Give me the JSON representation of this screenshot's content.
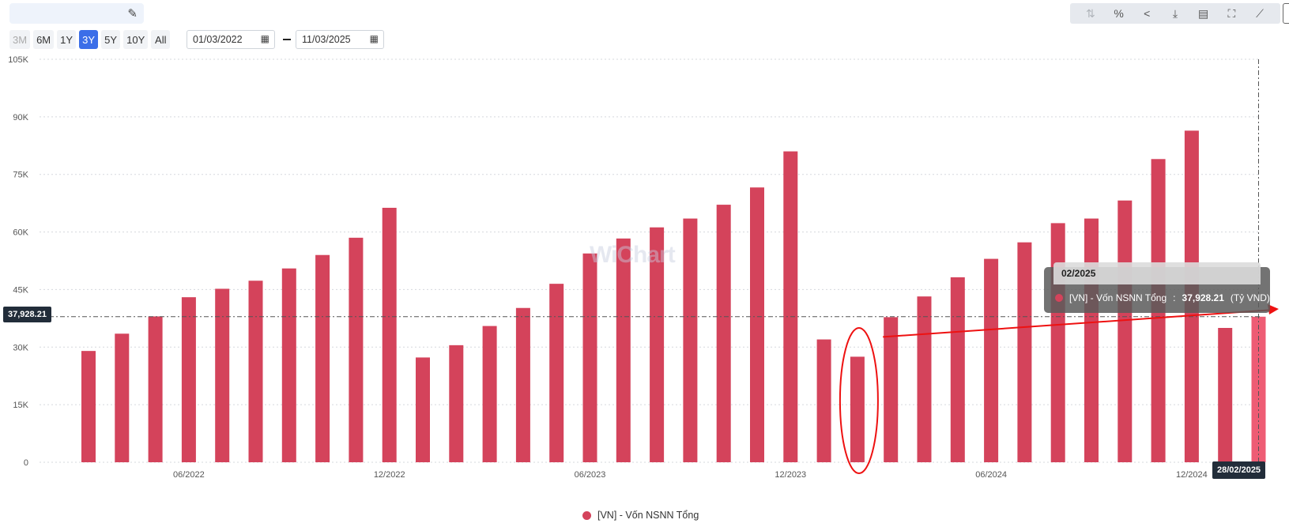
{
  "header": {
    "title": "",
    "edit_icon": "pencil-icon"
  },
  "range_buttons": [
    {
      "label": "3M",
      "state": "disabled"
    },
    {
      "label": "6M",
      "state": "normal"
    },
    {
      "label": "1Y",
      "state": "normal"
    },
    {
      "label": "3Y",
      "state": "active"
    },
    {
      "label": "5Y",
      "state": "normal"
    },
    {
      "label": "10Y",
      "state": "normal"
    },
    {
      "label": "All",
      "state": "normal"
    }
  ],
  "date_range": {
    "start": "01/03/2022",
    "end": "11/03/2025",
    "calendar_icon": "calendar-icon"
  },
  "toolbar": {
    "icons": [
      "log-scale-icon",
      "percent-icon",
      "share-icon",
      "download-icon",
      "excel-icon",
      "fullscreen-icon",
      "trend-icon"
    ]
  },
  "accent_color": "#3b6ee8",
  "bar_color": "#d4435b",
  "highlight_color": "#ee5c74",
  "annotation_color": "#ee1111",
  "watermark": "WiChart",
  "crosshair": {
    "y_value_label": "37,928.21",
    "x_date_label": "28/02/2025"
  },
  "tooltip": {
    "date": "02/2025",
    "series": "[VN] - Vốn NSNN Tổng",
    "value": "37,928.21",
    "unit": "(Tỷ VND)"
  },
  "chart_data": {
    "type": "bar",
    "series": [
      {
        "name": "[VN] - Vốn NSNN Tổng",
        "values": [
          {
            "date": "03/2022",
            "value": 29000
          },
          {
            "date": "04/2022",
            "value": 33500
          },
          {
            "date": "05/2022",
            "value": 38000
          },
          {
            "date": "06/2022",
            "value": 43000
          },
          {
            "date": "07/2022",
            "value": 45200
          },
          {
            "date": "08/2022",
            "value": 47300
          },
          {
            "date": "09/2022",
            "value": 50500
          },
          {
            "date": "10/2022",
            "value": 54000
          },
          {
            "date": "11/2022",
            "value": 58500
          },
          {
            "date": "12/2022",
            "value": 66300
          },
          {
            "date": "01/2023",
            "value": 27300
          },
          {
            "date": "02/2023",
            "value": 30500
          },
          {
            "date": "03/2023",
            "value": 35500
          },
          {
            "date": "04/2023",
            "value": 40200
          },
          {
            "date": "05/2023",
            "value": 46500
          },
          {
            "date": "06/2023",
            "value": 54400
          },
          {
            "date": "07/2023",
            "value": 58300
          },
          {
            "date": "08/2023",
            "value": 61200
          },
          {
            "date": "09/2023",
            "value": 63500
          },
          {
            "date": "10/2023",
            "value": 67100
          },
          {
            "date": "11/2023",
            "value": 71600
          },
          {
            "date": "12/2023",
            "value": 81000
          },
          {
            "date": "01/2024",
            "value": 32000
          },
          {
            "date": "02/2024",
            "value": 27500
          },
          {
            "date": "03/2024",
            "value": 37800
          },
          {
            "date": "04/2024",
            "value": 43200
          },
          {
            "date": "05/2024",
            "value": 48200
          },
          {
            "date": "06/2024",
            "value": 53000
          },
          {
            "date": "07/2024",
            "value": 57300
          },
          {
            "date": "08/2024",
            "value": 62300
          },
          {
            "date": "09/2024",
            "value": 63500
          },
          {
            "date": "10/2024",
            "value": 68200
          },
          {
            "date": "11/2024",
            "value": 79000
          },
          {
            "date": "12/2024",
            "value": 86400
          },
          {
            "date": "01/2025",
            "value": 35000
          },
          {
            "date": "02/2025",
            "value": 37928.21
          }
        ]
      }
    ],
    "ylim": [
      0,
      105000
    ],
    "y_ticks": [
      {
        "value": 0,
        "label": "0"
      },
      {
        "value": 15000,
        "label": "15K"
      },
      {
        "value": 30000,
        "label": "30K"
      },
      {
        "value": 45000,
        "label": "45K"
      },
      {
        "value": 60000,
        "label": "60K"
      },
      {
        "value": 75000,
        "label": "75K"
      },
      {
        "value": 90000,
        "label": "90K"
      },
      {
        "value": 105000,
        "label": "105K"
      }
    ],
    "x_ticks": [
      {
        "date": "06/2022",
        "label": "06/2022"
      },
      {
        "date": "12/2022",
        "label": "12/2022"
      },
      {
        "date": "06/2023",
        "label": "06/2023"
      },
      {
        "date": "12/2023",
        "label": "12/2023"
      },
      {
        "date": "06/2024",
        "label": "06/2024"
      },
      {
        "date": "12/2024",
        "label": "12/2024"
      }
    ],
    "highlighted": "02/2025",
    "circled": "02/2024",
    "grid": true,
    "legend": "bottom-center",
    "title": "",
    "xlabel": "",
    "ylabel": ""
  }
}
